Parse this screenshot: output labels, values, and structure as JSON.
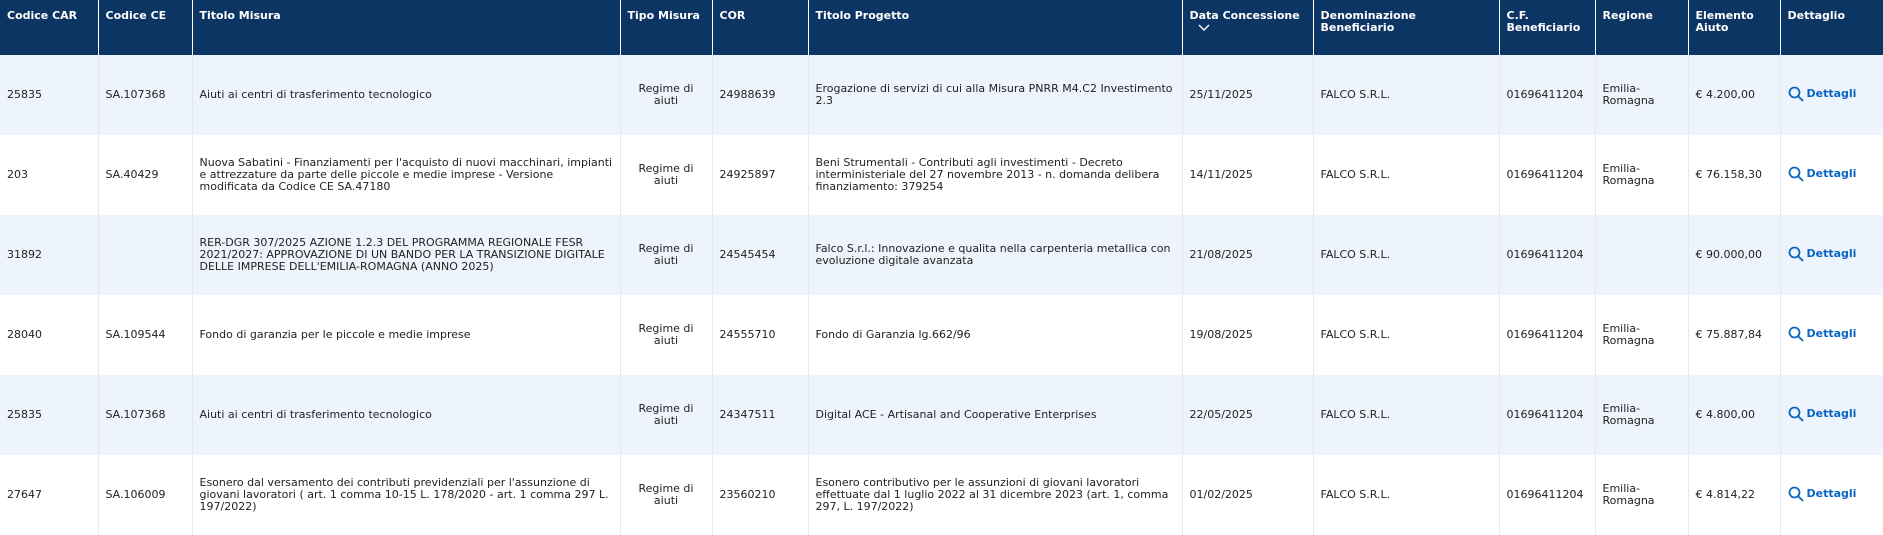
{
  "table": {
    "headers": [
      "Codice CAR",
      "Codice CE",
      "Titolo Misura",
      "Tipo Misura",
      "COR",
      "Titolo Progetto",
      "Data Concessione",
      "Denominazione Beneficiario",
      "C.F. Beneficiario",
      "Regione",
      "Elemento Aiuto",
      "Dettaglio"
    ],
    "rows": [
      [
        "25835",
        "SA.107368",
        "Aiuti ai centri di trasferimento tecnologico",
        "Regime di aiuti",
        "24988639",
        "Erogazione di servizi di cui alla Misura PNRR M4.C2 Investimento 2.3",
        "25/11/2025",
        "FALCO S.R.L.",
        "01696411204",
        "Emilia-Romagna",
        "€ 4.200,00",
        "Dettagli"
      ],
      [
        "203",
        "SA.40429",
        "Nuova Sabatini - Finanziamenti per l'acquisto di nuovi macchinari, impianti e attrezzature da parte delle piccole e medie imprese - Versione modificata da Codice CE SA.47180",
        "Regime di aiuti",
        "24925897",
        "Beni Strumentali - Contributi agli investimenti - Decreto interministeriale del 27 novembre 2013 - n. domanda delibera finanziamento: 379254",
        "14/11/2025",
        "FALCO S.R.L.",
        "01696411204",
        "Emilia-Romagna",
        "€ 76.158,30",
        "Dettagli"
      ],
      [
        "31892",
        null,
        "RER-DGR 307/2025 AZIONE 1.2.3 DEL PROGRAMMA REGIONALE FESR 2021/2027: APPROVAZIONE DI UN BANDO PER LA TRANSIZIONE DIGITALE DELLE IMPRESE DELL'EMILIA-ROMAGNA (ANNO 2025)",
        "Regime di aiuti",
        "24545454",
        "Falco S.r.l.: Innovazione e qualita nella carpenteria metallica con evoluzione digitale avanzata",
        "21/08/2025",
        "FALCO S.R.L.",
        "01696411204",
        null,
        "€ 90.000,00",
        "Dettagli"
      ],
      [
        "28040",
        "SA.109544",
        "Fondo di garanzia per le piccole e medie imprese",
        "Regime di aiuti",
        "24555710",
        "Fondo di Garanzia lg.662/96",
        "19/08/2025",
        "FALCO S.R.L.",
        "01696411204",
        "Emilia-Romagna",
        "€ 75.887,84",
        "Dettagli"
      ],
      [
        "25835",
        "SA.107368",
        "Aiuti ai centri di trasferimento tecnologico",
        "Regime di aiuti",
        "24347511",
        "Digital ACE - Artisanal and Cooperative Enterprises",
        "22/05/2025",
        "FALCO S.R.L.",
        "01696411204",
        "Emilia-Romagna",
        "€ 4.800,00",
        "Dettagli"
      ],
      [
        "27647",
        "SA.106009",
        "Esonero dal versamento dei contributi previdenziali per l'assunzione di giovani lavoratori ( art. 1 comma 10-15 L. 178/2020 - art. 1 comma 297 L. 197/2022)",
        "Regime di aiuti",
        "23560210",
        "Esonero contributivo per le assunzioni di giovani lavoratori effettuate dal 1 luglio 2022 al 31 dicembre 2023 (art. 1, comma 297, L. 197/2022)",
        "01/02/2025",
        "FALCO S.R.L.",
        "01696411204",
        "Emilia-Romagna",
        "€ 4.814,22",
        "Dettagli"
      ]
    ]
  }
}
